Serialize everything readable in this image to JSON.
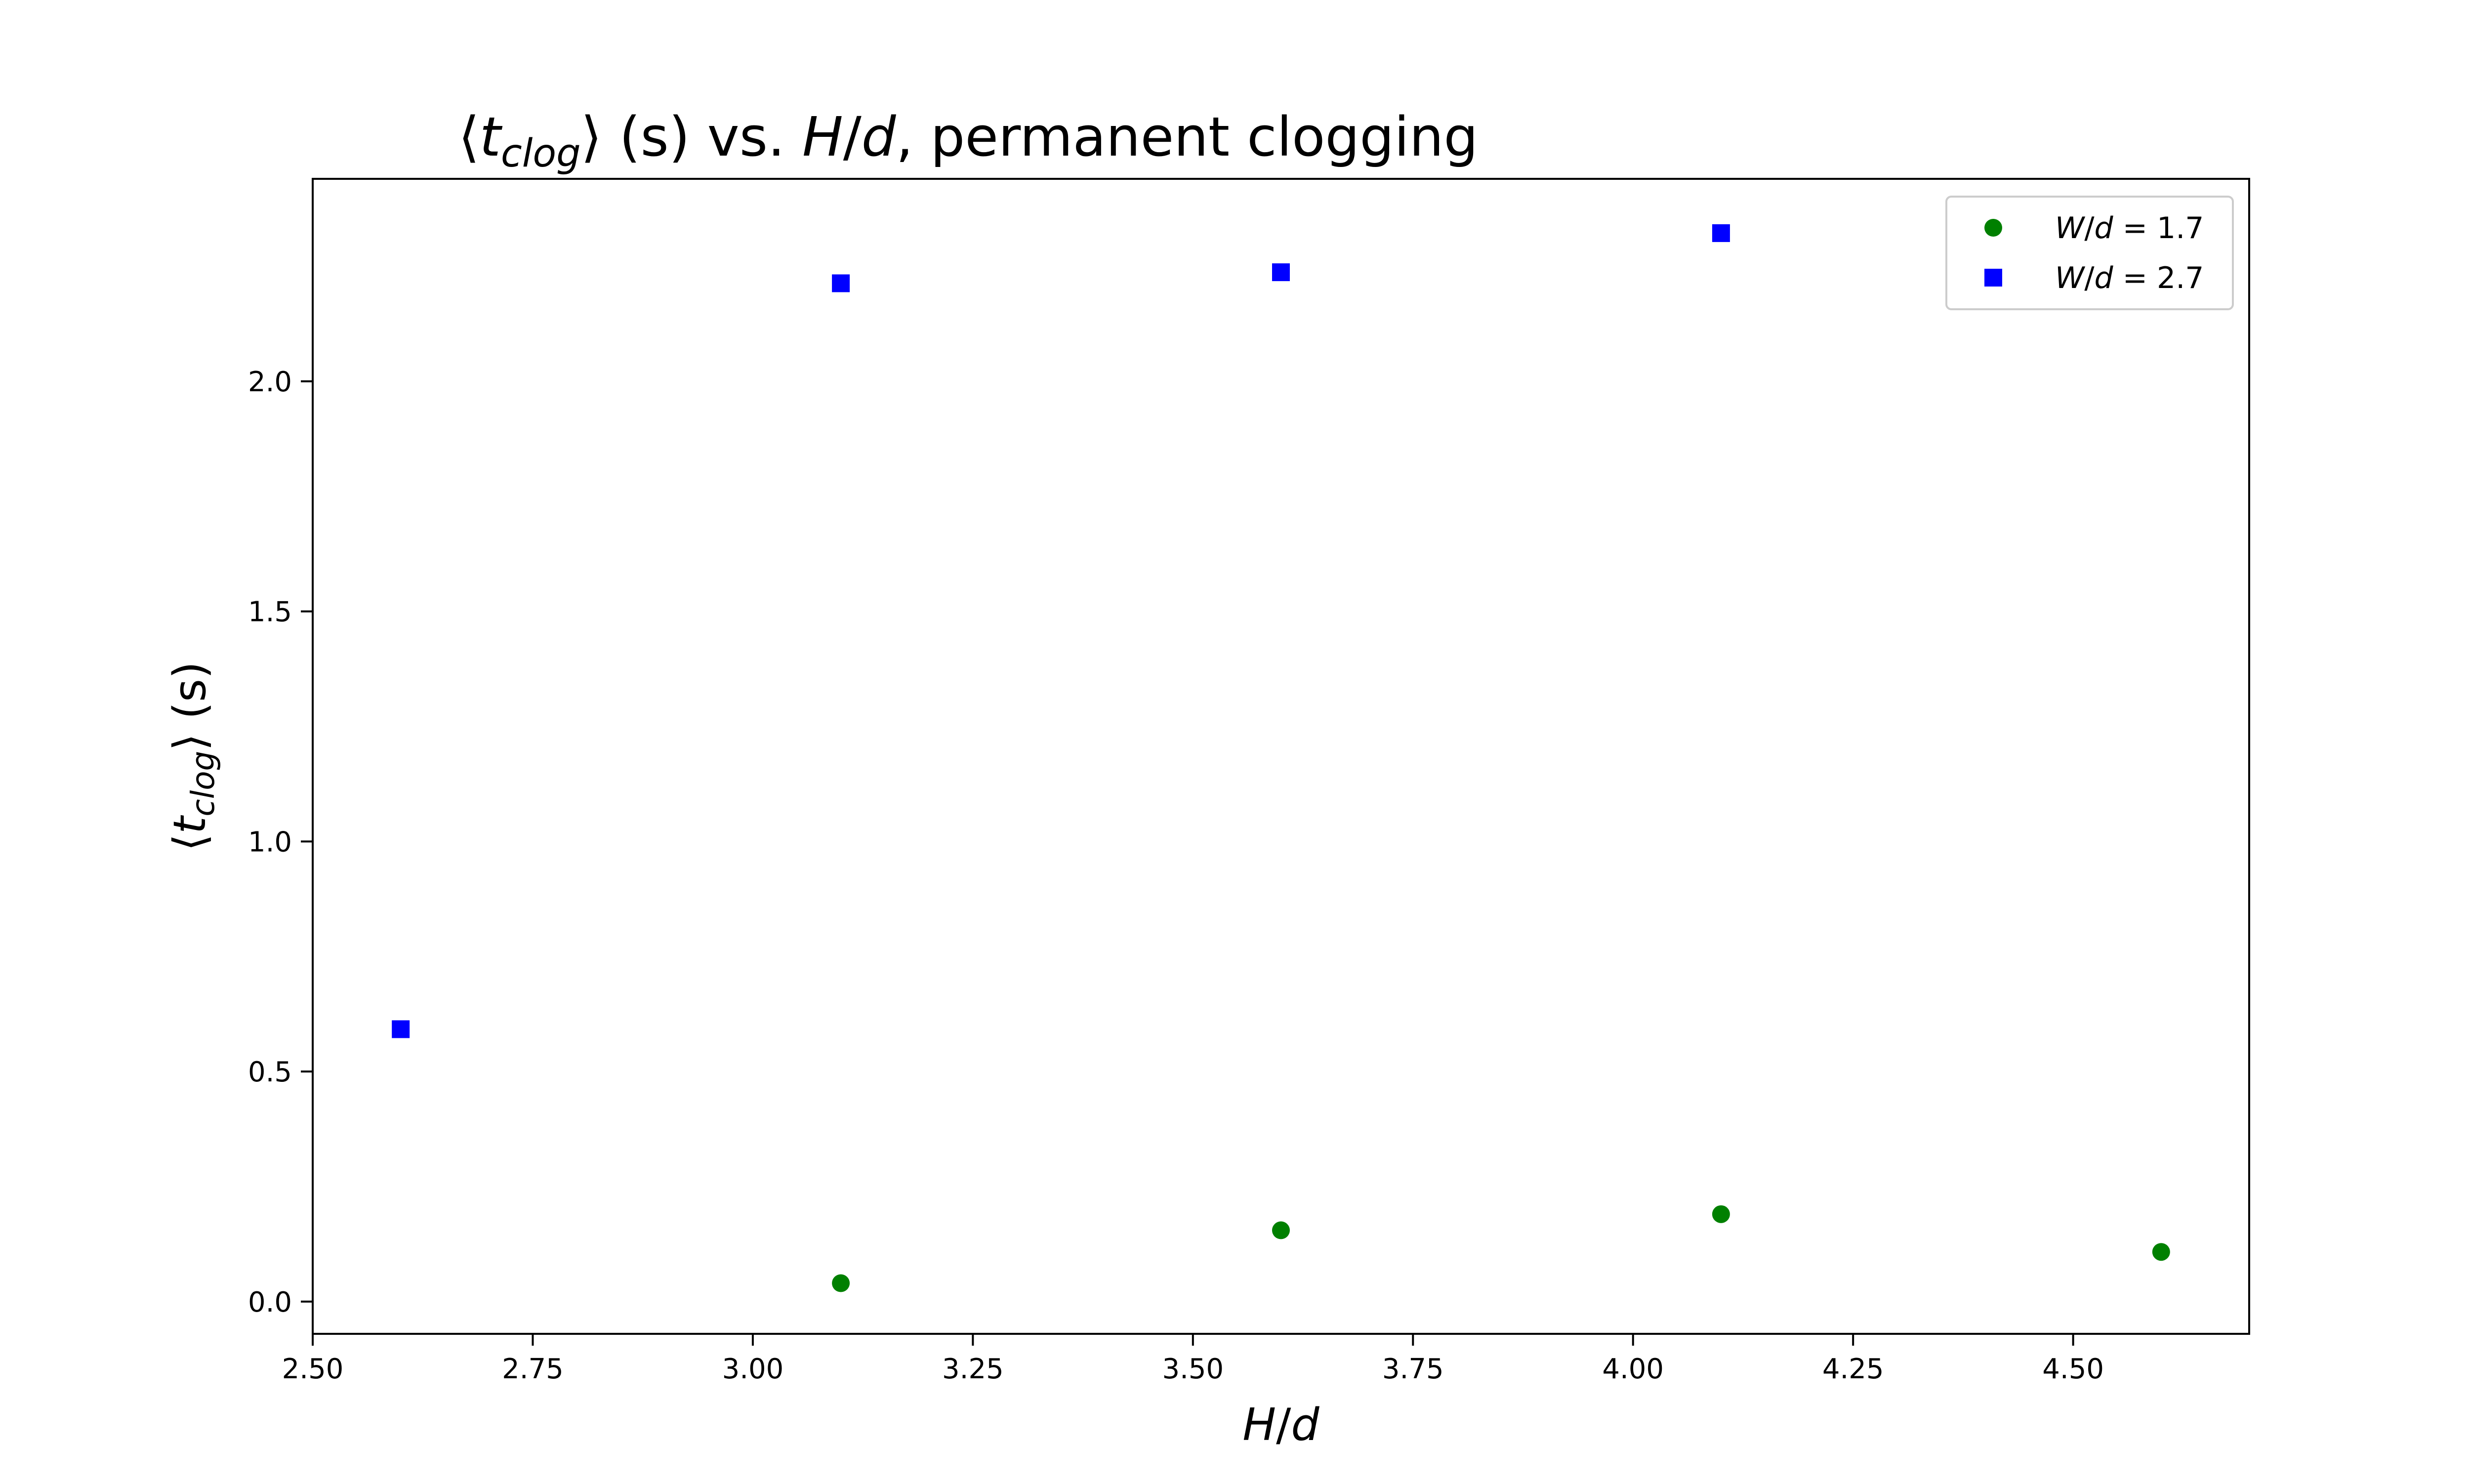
{
  "chart_data": {
    "type": "scatter",
    "title": "⟨t_clog⟩ (s) vs. H/d, permanent clogging",
    "xlabel": "H/d",
    "ylabel": "⟨t_clog⟩ (s)",
    "xlim": [
      2.5,
      4.7
    ],
    "ylim": [
      -0.07,
      2.44
    ],
    "xticks": [
      "2.50",
      "2.75",
      "3.00",
      "3.25",
      "3.50",
      "3.75",
      "4.00",
      "4.25",
      "4.50"
    ],
    "yticks": [
      "0.0",
      "0.5",
      "1.0",
      "1.5",
      "2.0"
    ],
    "grid": false,
    "legend_position": "top-right",
    "series": [
      {
        "name": "W/d = 1.7",
        "marker": "circle",
        "color": "#008000",
        "points": [
          [
            3.1,
            0.04
          ],
          [
            3.6,
            0.155
          ],
          [
            4.1,
            0.19
          ],
          [
            4.6,
            0.108
          ]
        ]
      },
      {
        "name": "W/d = 2.7",
        "marker": "square",
        "color": "#0000ff",
        "points": [
          [
            2.6,
            0.592
          ],
          [
            3.1,
            2.213
          ],
          [
            3.6,
            2.237
          ],
          [
            4.1,
            2.322
          ]
        ]
      }
    ]
  }
}
